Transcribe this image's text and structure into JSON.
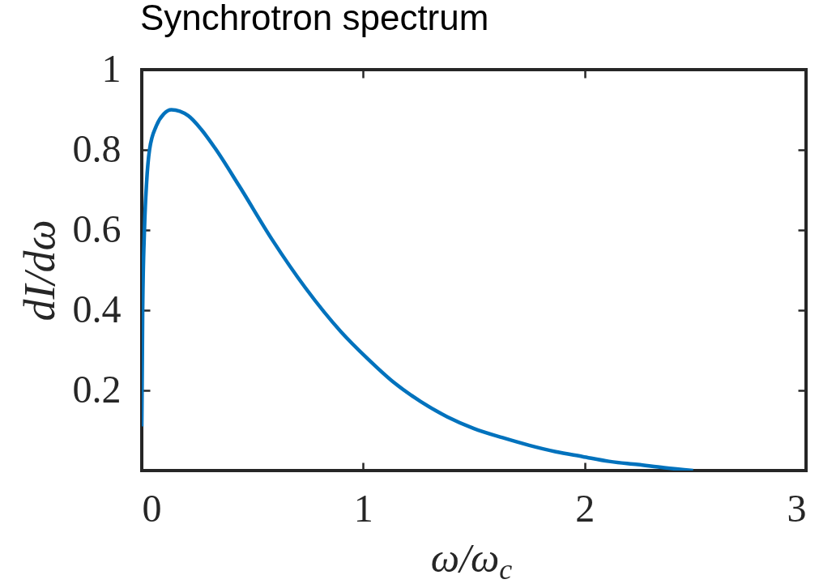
{
  "chart_data": {
    "type": "line",
    "title": "Synchrotron spectrum",
    "xlabel": "ω/ω$_{c}$",
    "ylabel": "dI/dω",
    "x": [
      0,
      0.004,
      0.012,
      0.022,
      0.035,
      0.066,
      0.1,
      0.134,
      0.21,
      0.27,
      0.33,
      0.44,
      0.59,
      0.74,
      0.9,
      1.02,
      1.14,
      1.26,
      1.38,
      1.5,
      1.63,
      1.75,
      1.87,
      1.99,
      2.11,
      2.24,
      2.36,
      2.49
    ],
    "series": [
      {
        "color": "#0072bd",
        "values": [
          0.11,
          0.4,
          0.6,
          0.72,
          0.8,
          0.86,
          0.89,
          0.9,
          0.885,
          0.85,
          0.805,
          0.71,
          0.575,
          0.455,
          0.346,
          0.279,
          0.219,
          0.172,
          0.134,
          0.105,
          0.082,
          0.063,
          0.047,
          0.035,
          0.023,
          0.015,
          0.007,
          0.0
        ]
      }
    ],
    "xlim": [
      0,
      3
    ],
    "ylim": [
      0,
      1
    ],
    "xticks": [
      0,
      1,
      2,
      3
    ],
    "yticks": [
      0.2,
      0.4,
      0.6,
      0.8,
      1
    ],
    "grid": false,
    "line_style": "solid"
  }
}
